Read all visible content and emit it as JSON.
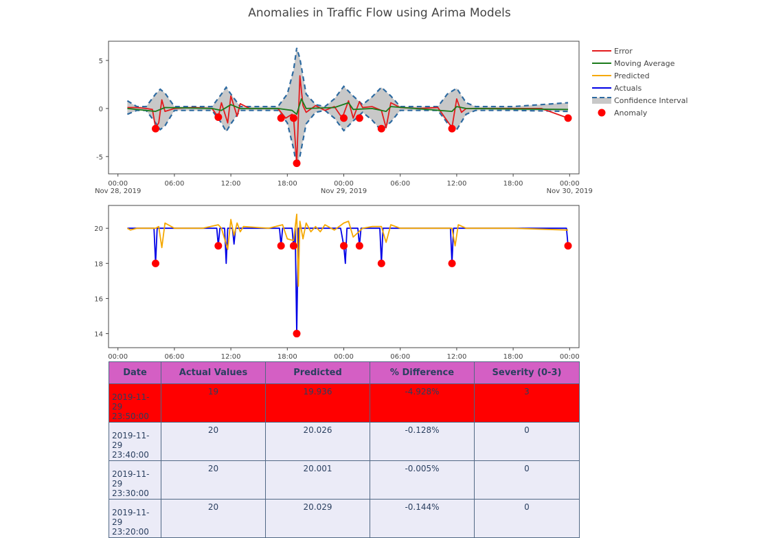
{
  "title": "Anomalies in Traffic Flow using Arima Models",
  "colors": {
    "error": "#e31a1c",
    "moving_average": "#1a7a1a",
    "predicted": "#f5a800",
    "actuals": "#0000e6",
    "confidence": "#c8c8c8",
    "confidence_edge": "#2d6aa0",
    "anomaly": "#ff0000",
    "table_header": "#d45fc4",
    "table_row": "#ebebf7",
    "table_highlight": "#ff0000"
  },
  "chart_data": [
    {
      "type": "line",
      "title": "",
      "xlabel": "",
      "ylabel": "",
      "x_range": [
        "2019-11-27 23:00",
        "2019-11-30 01:00"
      ],
      "ylim": [
        -6.8,
        7.0
      ],
      "y_ticks": [
        -5,
        0,
        5
      ],
      "x_ticks": [
        {
          "x": "2019-11-28 00:00",
          "label": "00:00",
          "sub": "Nov 28, 2019"
        },
        {
          "x": "2019-11-28 06:00",
          "label": "06:00",
          "sub": ""
        },
        {
          "x": "2019-11-28 12:00",
          "label": "12:00",
          "sub": ""
        },
        {
          "x": "2019-11-28 18:00",
          "label": "18:00",
          "sub": ""
        },
        {
          "x": "2019-11-29 00:00",
          "label": "00:00",
          "sub": "Nov 29, 2019"
        },
        {
          "x": "2019-11-29 06:00",
          "label": "06:00",
          "sub": ""
        },
        {
          "x": "2019-11-29 12:00",
          "label": "12:00",
          "sub": ""
        },
        {
          "x": "2019-11-29 18:00",
          "label": "18:00",
          "sub": ""
        },
        {
          "x": "2019-11-30 00:00",
          "label": "00:00",
          "sub": "Nov 30, 2019"
        }
      ],
      "legend_position": "right",
      "legend": [
        {
          "name": "Error",
          "kind": "line",
          "color": "#e31a1c"
        },
        {
          "name": "Moving Average",
          "kind": "line",
          "color": "#1a7a1a"
        },
        {
          "name": "Predicted",
          "kind": "line",
          "color": "#f5a800"
        },
        {
          "name": "Actuals",
          "kind": "line",
          "color": "#0000e6"
        },
        {
          "name": "Confidence Interval",
          "kind": "band",
          "color": "#c8c8c8"
        },
        {
          "name": "Anomaly",
          "kind": "marker",
          "color": "#ff0000"
        }
      ],
      "series": [
        {
          "name": "Error",
          "color": "#e31a1c",
          "x": [
            "2019-11-28 01:00",
            "2019-11-28 02:00",
            "2019-11-28 03:00",
            "2019-11-28 03:40",
            "2019-11-28 04:00",
            "2019-11-28 04:20",
            "2019-11-28 04:40",
            "2019-11-28 05:00",
            "2019-11-28 06:00",
            "2019-11-28 08:00",
            "2019-11-28 10:00",
            "2019-11-28 10:40",
            "2019-11-28 11:00",
            "2019-11-28 11:40",
            "2019-11-28 12:00",
            "2019-11-28 12:40",
            "2019-11-28 13:00",
            "2019-11-28 14:00",
            "2019-11-28 16:00",
            "2019-11-28 17:00",
            "2019-11-28 17:50",
            "2019-11-28 18:30",
            "2019-11-28 18:40",
            "2019-11-28 19:00",
            "2019-11-28 19:20",
            "2019-11-28 19:40",
            "2019-11-28 20:00",
            "2019-11-28 21:00",
            "2019-11-28 22:00",
            "2019-11-28 23:00",
            "2019-11-28 23:50",
            "2019-11-29 00:30",
            "2019-11-29 01:00",
            "2019-11-29 01:40",
            "2019-11-29 02:00",
            "2019-11-29 03:00",
            "2019-11-29 04:00",
            "2019-11-29 04:30",
            "2019-11-29 05:00",
            "2019-11-29 06:00",
            "2019-11-29 08:00",
            "2019-11-29 10:00",
            "2019-11-29 11:30",
            "2019-11-29 12:00",
            "2019-11-29 12:30",
            "2019-11-29 13:00",
            "2019-11-29 15:00",
            "2019-11-29 18:00",
            "2019-11-29 21:00",
            "2019-11-29 23:50"
          ],
          "y": [
            0.1,
            0.1,
            0.0,
            -0.1,
            -2.0,
            -1.5,
            0.9,
            -0.3,
            0.0,
            0.1,
            0.0,
            -0.9,
            0.6,
            -1.5,
            1.3,
            -0.8,
            0.5,
            0.0,
            0.0,
            0.0,
            -1.0,
            -0.6,
            -0.9,
            -5.7,
            3.4,
            0.3,
            -0.4,
            0.3,
            -0.2,
            0.2,
            -1.0,
            0.8,
            -1.0,
            0.7,
            0.1,
            0.2,
            -0.2,
            -2.0,
            0.6,
            0.1,
            0.0,
            0.1,
            -2.0,
            1.0,
            -0.4,
            0.0,
            0.0,
            0.0,
            0.0,
            -1.0
          ]
        },
        {
          "name": "Moving Average",
          "color": "#1a7a1a",
          "x": [
            "2019-11-28 01:00",
            "2019-11-28 04:00",
            "2019-11-28 05:00",
            "2019-11-28 10:00",
            "2019-11-28 11:00",
            "2019-11-28 12:00",
            "2019-11-28 13:00",
            "2019-11-28 17:00",
            "2019-11-28 18:30",
            "2019-11-28 19:00",
            "2019-11-28 19:30",
            "2019-11-28 20:00",
            "2019-11-28 23:00",
            "2019-11-29 00:30",
            "2019-11-29 01:00",
            "2019-11-29 03:00",
            "2019-11-29 04:30",
            "2019-11-29 05:00",
            "2019-11-29 11:30",
            "2019-11-29 12:00",
            "2019-11-29 13:00",
            "2019-11-29 23:50"
          ],
          "y": [
            0.0,
            -0.3,
            0.1,
            0.0,
            -0.2,
            0.4,
            0.0,
            0.0,
            -0.2,
            -0.6,
            1.0,
            0.0,
            0.1,
            0.6,
            -0.1,
            0.0,
            -0.3,
            0.2,
            -0.3,
            0.2,
            0.0,
            -0.1
          ]
        },
        {
          "name": "Confidence Interval",
          "kind": "band",
          "color": "#c8c8c8",
          "x": [
            "2019-11-28 01:00",
            "2019-11-28 02:00",
            "2019-11-28 03:00",
            "2019-11-28 04:00",
            "2019-11-28 04:30",
            "2019-11-28 05:00",
            "2019-11-28 06:00",
            "2019-11-28 08:00",
            "2019-11-28 10:00",
            "2019-11-28 11:00",
            "2019-11-28 11:30",
            "2019-11-28 12:00",
            "2019-11-28 13:00",
            "2019-11-28 14:00",
            "2019-11-28 16:00",
            "2019-11-28 17:00",
            "2019-11-28 18:00",
            "2019-11-28 18:40",
            "2019-11-28 19:00",
            "2019-11-28 19:20",
            "2019-11-28 20:00",
            "2019-11-28 21:00",
            "2019-11-28 22:00",
            "2019-11-28 23:00",
            "2019-11-29 00:00",
            "2019-11-29 01:00",
            "2019-11-29 02:00",
            "2019-11-29 03:00",
            "2019-11-29 04:00",
            "2019-11-29 05:00",
            "2019-11-29 06:00",
            "2019-11-29 08:00",
            "2019-11-29 10:00",
            "2019-11-29 11:00",
            "2019-11-29 12:00",
            "2019-11-29 13:00",
            "2019-11-29 14:00",
            "2019-11-29 18:00",
            "2019-11-29 23:50"
          ],
          "upper": [
            0.8,
            0.2,
            0.2,
            1.5,
            2.0,
            1.6,
            0.2,
            0.2,
            0.2,
            1.5,
            2.2,
            1.5,
            0.2,
            0.2,
            0.2,
            0.2,
            1.5,
            4.0,
            6.3,
            5.2,
            1.5,
            0.4,
            0.2,
            1.0,
            2.3,
            1.3,
            0.4,
            1.2,
            2.2,
            1.3,
            0.2,
            0.2,
            0.2,
            1.5,
            2.1,
            0.6,
            0.2,
            0.2,
            0.6
          ],
          "lower": [
            -0.6,
            -0.2,
            -0.2,
            -1.5,
            -2.2,
            -1.8,
            -0.2,
            -0.2,
            -0.2,
            -1.5,
            -2.4,
            -1.6,
            -0.2,
            -0.2,
            -0.2,
            -0.2,
            -1.5,
            -4.2,
            -6.0,
            -5.0,
            -1.6,
            -0.4,
            -0.2,
            -1.0,
            -2.3,
            -1.3,
            -0.4,
            -1.2,
            -2.3,
            -1.4,
            -0.2,
            -0.2,
            -0.2,
            -1.5,
            -2.2,
            -0.6,
            -0.2,
            -0.2,
            -0.3
          ]
        },
        {
          "name": "Anomaly",
          "kind": "marker",
          "color": "#ff0000",
          "x": [
            "2019-11-28 04:00",
            "2019-11-28 10:40",
            "2019-11-28 17:20",
            "2019-11-28 18:40",
            "2019-11-28 19:00",
            "2019-11-29 00:00",
            "2019-11-29 01:40",
            "2019-11-29 04:00",
            "2019-11-29 11:30",
            "2019-11-29 23:50"
          ],
          "y": [
            -2.1,
            -0.9,
            -1.0,
            -1.0,
            -5.7,
            -1.0,
            -1.0,
            -2.1,
            -2.1,
            -1.0
          ]
        }
      ]
    },
    {
      "type": "line",
      "title": "",
      "xlabel": "",
      "ylabel": "",
      "x_range": [
        "2019-11-27 23:00",
        "2019-11-30 01:00"
      ],
      "ylim": [
        13.2,
        21.3
      ],
      "y_ticks": [
        14,
        16,
        18,
        20
      ],
      "x_ticks": [
        {
          "x": "2019-11-28 00:00",
          "label": "00:00"
        },
        {
          "x": "2019-11-28 06:00",
          "label": "06:00"
        },
        {
          "x": "2019-11-28 12:00",
          "label": "12:00"
        },
        {
          "x": "2019-11-28 18:00",
          "label": "18:00"
        },
        {
          "x": "2019-11-29 00:00",
          "label": "00:00"
        },
        {
          "x": "2019-11-29 06:00",
          "label": "06:00"
        },
        {
          "x": "2019-11-29 12:00",
          "label": "12:00"
        },
        {
          "x": "2019-11-29 18:00",
          "label": "18:00"
        },
        {
          "x": "2019-11-30 00:00",
          "label": "00:00"
        }
      ],
      "series": [
        {
          "name": "Actuals",
          "color": "#0000e6",
          "x": [
            "2019-11-28 01:00",
            "2019-11-28 03:50",
            "2019-11-28 04:00",
            "2019-11-28 04:10",
            "2019-11-28 10:30",
            "2019-11-28 10:40",
            "2019-11-28 10:50",
            "2019-11-28 11:20",
            "2019-11-28 11:30",
            "2019-11-28 11:40",
            "2019-11-28 12:10",
            "2019-11-28 12:20",
            "2019-11-28 12:30",
            "2019-11-28 17:10",
            "2019-11-28 17:20",
            "2019-11-28 17:30",
            "2019-11-28 18:30",
            "2019-11-28 18:40",
            "2019-11-28 18:50",
            "2019-11-28 19:00",
            "2019-11-28 19:10",
            "2019-11-28 23:40",
            "2019-11-29 00:00",
            "2019-11-29 00:10",
            "2019-11-29 00:20",
            "2019-11-29 01:30",
            "2019-11-29 01:40",
            "2019-11-29 01:50",
            "2019-11-29 03:50",
            "2019-11-29 04:00",
            "2019-11-29 04:10",
            "2019-11-29 11:20",
            "2019-11-29 11:30",
            "2019-11-29 11:40",
            "2019-11-29 23:40",
            "2019-11-29 23:50"
          ],
          "y": [
            20,
            20,
            18,
            20,
            20,
            19,
            20,
            20,
            18,
            20,
            20,
            19.1,
            20,
            20,
            19,
            20,
            20,
            19,
            20,
            14,
            20,
            20,
            19,
            18,
            20,
            20,
            19,
            20,
            20,
            18,
            20,
            20,
            18,
            20,
            20,
            19
          ]
        },
        {
          "name": "Predicted",
          "color": "#f5a800",
          "x": [
            "2019-11-28 01:00",
            "2019-11-28 01:20",
            "2019-11-28 02:00",
            "2019-11-28 03:00",
            "2019-11-28 04:00",
            "2019-11-28 04:20",
            "2019-11-28 04:40",
            "2019-11-28 05:00",
            "2019-11-28 06:00",
            "2019-11-28 09:00",
            "2019-11-28 10:40",
            "2019-11-28 11:00",
            "2019-11-28 11:40",
            "2019-11-28 12:00",
            "2019-11-28 12:20",
            "2019-11-28 12:40",
            "2019-11-28 13:00",
            "2019-11-28 13:20",
            "2019-11-28 16:00",
            "2019-11-28 17:30",
            "2019-11-28 18:00",
            "2019-11-28 18:40",
            "2019-11-28 19:00",
            "2019-11-28 19:10",
            "2019-11-28 19:20",
            "2019-11-28 19:40",
            "2019-11-28 20:00",
            "2019-11-28 20:30",
            "2019-11-28 21:00",
            "2019-11-28 21:30",
            "2019-11-28 22:00",
            "2019-11-28 23:00",
            "2019-11-29 00:00",
            "2019-11-29 00:30",
            "2019-11-29 01:00",
            "2019-11-29 02:00",
            "2019-11-29 03:00",
            "2019-11-29 04:00",
            "2019-11-29 04:30",
            "2019-11-29 05:00",
            "2019-11-29 06:00",
            "2019-11-29 09:00",
            "2019-11-29 11:30",
            "2019-11-29 11:50",
            "2019-11-29 12:10",
            "2019-11-29 13:00",
            "2019-11-29 18:00",
            "2019-11-29 23:50"
          ],
          "y": [
            20,
            19.9,
            20,
            20,
            20,
            20.1,
            18.9,
            20.3,
            20,
            20,
            20.2,
            20.0,
            18.8,
            20.5,
            19.6,
            20.3,
            19.8,
            20.1,
            20,
            20.2,
            19.4,
            19.3,
            20.8,
            16.7,
            20.4,
            19.4,
            20.3,
            19.8,
            20.1,
            19.8,
            20.2,
            19.9,
            20.3,
            20.4,
            19.5,
            20,
            20.1,
            20.1,
            19.2,
            20.2,
            20,
            20,
            20,
            19.0,
            20.2,
            20,
            20,
            19.9
          ]
        },
        {
          "name": "Anomaly",
          "kind": "marker",
          "color": "#ff0000",
          "x": [
            "2019-11-28 04:00",
            "2019-11-28 10:40",
            "2019-11-28 17:20",
            "2019-11-28 18:40",
            "2019-11-28 19:00",
            "2019-11-29 00:00",
            "2019-11-29 01:40",
            "2019-11-29 04:00",
            "2019-11-29 11:30",
            "2019-11-29 23:50"
          ],
          "y": [
            18,
            19,
            19,
            19,
            14,
            19,
            19,
            18,
            18,
            19
          ]
        }
      ]
    }
  ],
  "table": {
    "headers": [
      "Date",
      "Actual Values",
      "Predicted",
      "% Difference",
      "Severity (0-3)"
    ],
    "rows": [
      {
        "date": "2019-11-29 23:50:00",
        "actual": "19",
        "predicted": "19.936",
        "diff": "-4.928%",
        "severity": "3",
        "highlight": true
      },
      {
        "date": "2019-11-29 23:40:00",
        "actual": "20",
        "predicted": "20.026",
        "diff": "-0.128%",
        "severity": "0",
        "highlight": false
      },
      {
        "date": "2019-11-29 23:30:00",
        "actual": "20",
        "predicted": "20.001",
        "diff": "-0.005%",
        "severity": "0",
        "highlight": false
      },
      {
        "date": "2019-11-29 23:20:00",
        "actual": "20",
        "predicted": "20.029",
        "diff": "-0.144%",
        "severity": "0",
        "highlight": false
      }
    ]
  }
}
